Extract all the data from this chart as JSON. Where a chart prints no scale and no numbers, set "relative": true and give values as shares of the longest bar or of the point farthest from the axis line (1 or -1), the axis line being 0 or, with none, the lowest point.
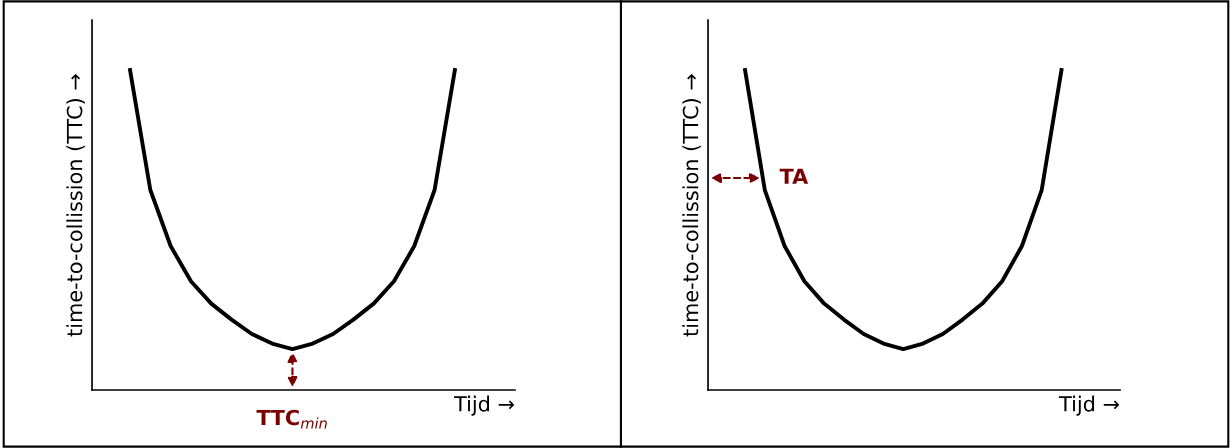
{
  "chart_data": [
    {
      "type": "line",
      "relative": true,
      "xlabel": "Tijd →",
      "ylabel": "time-to-collission (TTC) →",
      "categories": [
        null,
        null,
        null,
        null,
        null,
        null,
        null,
        null,
        null,
        null,
        null,
        null,
        null,
        null,
        null,
        null,
        null
      ],
      "series": [
        {
          "color": "#000000",
          "values": [
            1.0,
            0.625,
            0.45,
            0.34,
            0.27,
            0.22,
            0.175,
            0.145,
            0.128,
            0.145,
            0.175,
            0.22,
            0.27,
            0.34,
            0.45,
            0.625,
            1.0
          ]
        }
      ],
      "annotations": [
        {
          "text": "TTC$_{min}$",
          "y": 0.128
        }
      ]
    },
    {
      "type": "line",
      "relative": true,
      "xlabel": "Tijd →",
      "ylabel": "time-to-collission (TTC) →",
      "categories": [
        null,
        null,
        null,
        null,
        null,
        null,
        null,
        null,
        null,
        null,
        null,
        null,
        null,
        null,
        null,
        null,
        null
      ],
      "series": [
        {
          "color": "#000000",
          "values": [
            1.0,
            0.625,
            0.45,
            0.34,
            0.27,
            0.22,
            0.175,
            0.145,
            0.128,
            0.145,
            0.175,
            0.22,
            0.27,
            0.34,
            0.45,
            0.625,
            1.0
          ]
        }
      ],
      "annotations": [
        "TA"
      ]
    }
  ]
}
